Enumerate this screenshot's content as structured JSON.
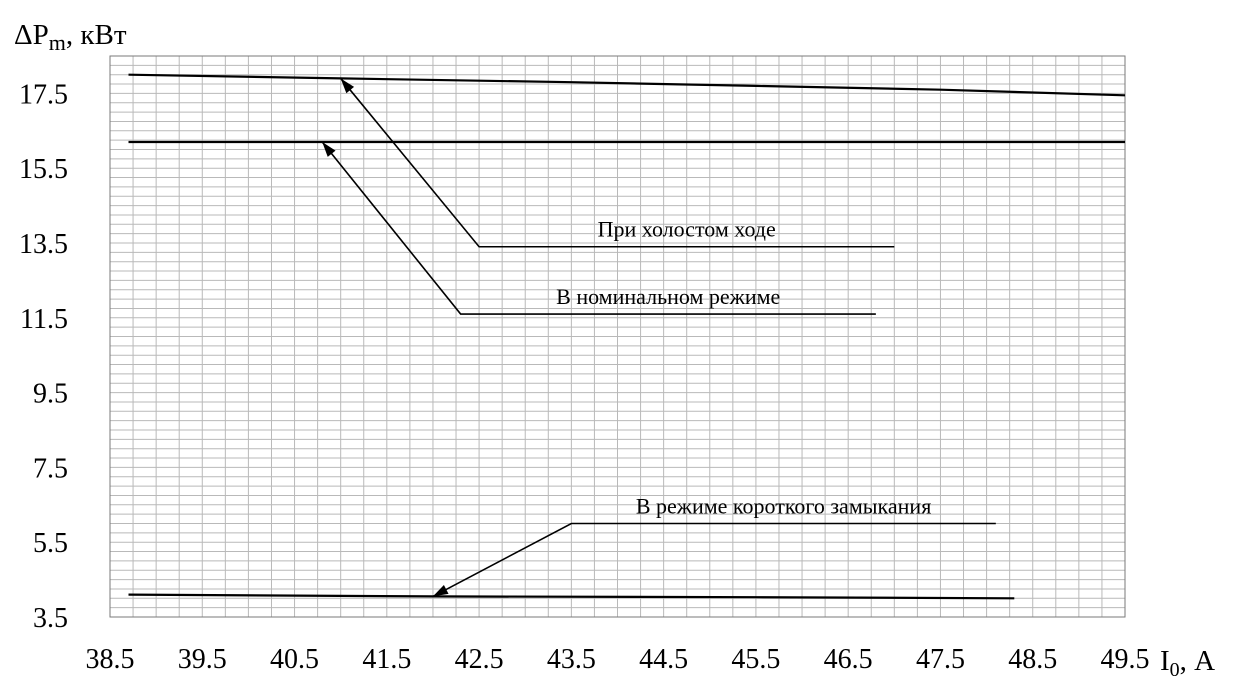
{
  "chart_data": {
    "type": "line",
    "ylabel": "ΔPm, кВт",
    "xlabel": "I0, А",
    "xlim": [
      38.5,
      49.5
    ],
    "ylim": [
      3.5,
      18.5
    ],
    "x_ticks": [
      38.5,
      39.5,
      40.5,
      41.5,
      42.5,
      43.5,
      44.5,
      45.5,
      46.5,
      47.5,
      48.5,
      49.5
    ],
    "y_ticks": [
      3.5,
      5.5,
      7.5,
      9.5,
      11.5,
      13.5,
      15.5,
      17.5
    ],
    "grid": "on",
    "series": [
      {
        "name": "При холостом ходе",
        "x": [
          38.7,
          41.0,
          43.5,
          45.5,
          47.5,
          49.5
        ],
        "y": [
          18.0,
          17.9,
          17.8,
          17.7,
          17.6,
          17.45
        ]
      },
      {
        "name": "В номинальном режиме",
        "x": [
          38.7,
          49.5
        ],
        "y": [
          16.2,
          16.2
        ]
      },
      {
        "name": "В режиме короткого замыкания",
        "x": [
          38.7,
          42.0,
          45.5,
          48.3
        ],
        "y": [
          4.1,
          4.05,
          4.03,
          4.0
        ]
      }
    ],
    "annotations": [
      {
        "text": "При холостом ходе",
        "arrow_to": [
          41.0,
          17.9
        ],
        "line_from": [
          42.5,
          13.4
        ],
        "line_to": [
          47.0,
          13.4
        ]
      },
      {
        "text": "В номинальном режиме",
        "arrow_to": [
          40.8,
          16.2
        ],
        "line_from": [
          42.3,
          11.6
        ],
        "line_to": [
          46.8,
          11.6
        ]
      },
      {
        "text": "В режиме короткого замыкания",
        "arrow_to": [
          42.0,
          4.05
        ],
        "line_from": [
          43.5,
          6.0
        ],
        "line_to": [
          48.1,
          6.0
        ]
      }
    ]
  }
}
